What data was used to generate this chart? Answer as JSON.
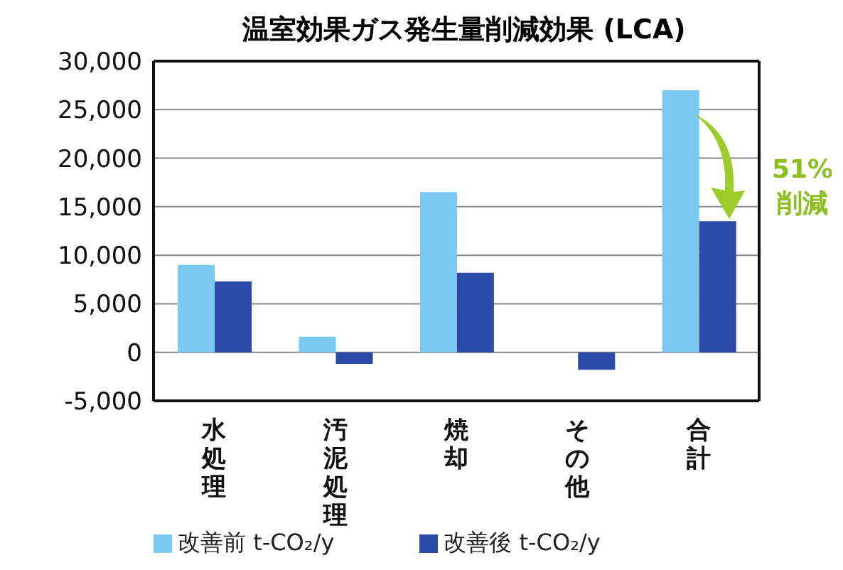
{
  "chart_data": {
    "type": "bar",
    "title": "温室効果ガス発生量削減効果 (LCA)",
    "categories": [
      "水処理",
      "汚泥処理",
      "焼却",
      "その他",
      "合計"
    ],
    "series": [
      {
        "name": "改善前 t-CO₂/y",
        "color": "#79c9f2",
        "values": [
          9000,
          1600,
          16500,
          0,
          27000
        ]
      },
      {
        "name": "改善後 t-CO₂/y",
        "color": "#2b4aa8",
        "values": [
          7300,
          -1200,
          8200,
          -1800,
          13500
        ]
      }
    ],
    "ylim": [
      -5000,
      30000
    ],
    "yticks": [
      {
        "value": -5000,
        "label": "-5,000"
      },
      0,
      {
        "value": 5000,
        "label": "5,000"
      },
      {
        "value": 10000,
        "label": "10,000"
      },
      {
        "value": 15000,
        "label": "15,000"
      },
      {
        "value": 20000,
        "label": "20,000"
      },
      {
        "value": 25000,
        "label": "25,000"
      },
      {
        "value": 30000,
        "label": "30,000"
      }
    ],
    "grid": "y",
    "legend": "bottom",
    "annotations": [
      "51%\n削減"
    ]
  }
}
